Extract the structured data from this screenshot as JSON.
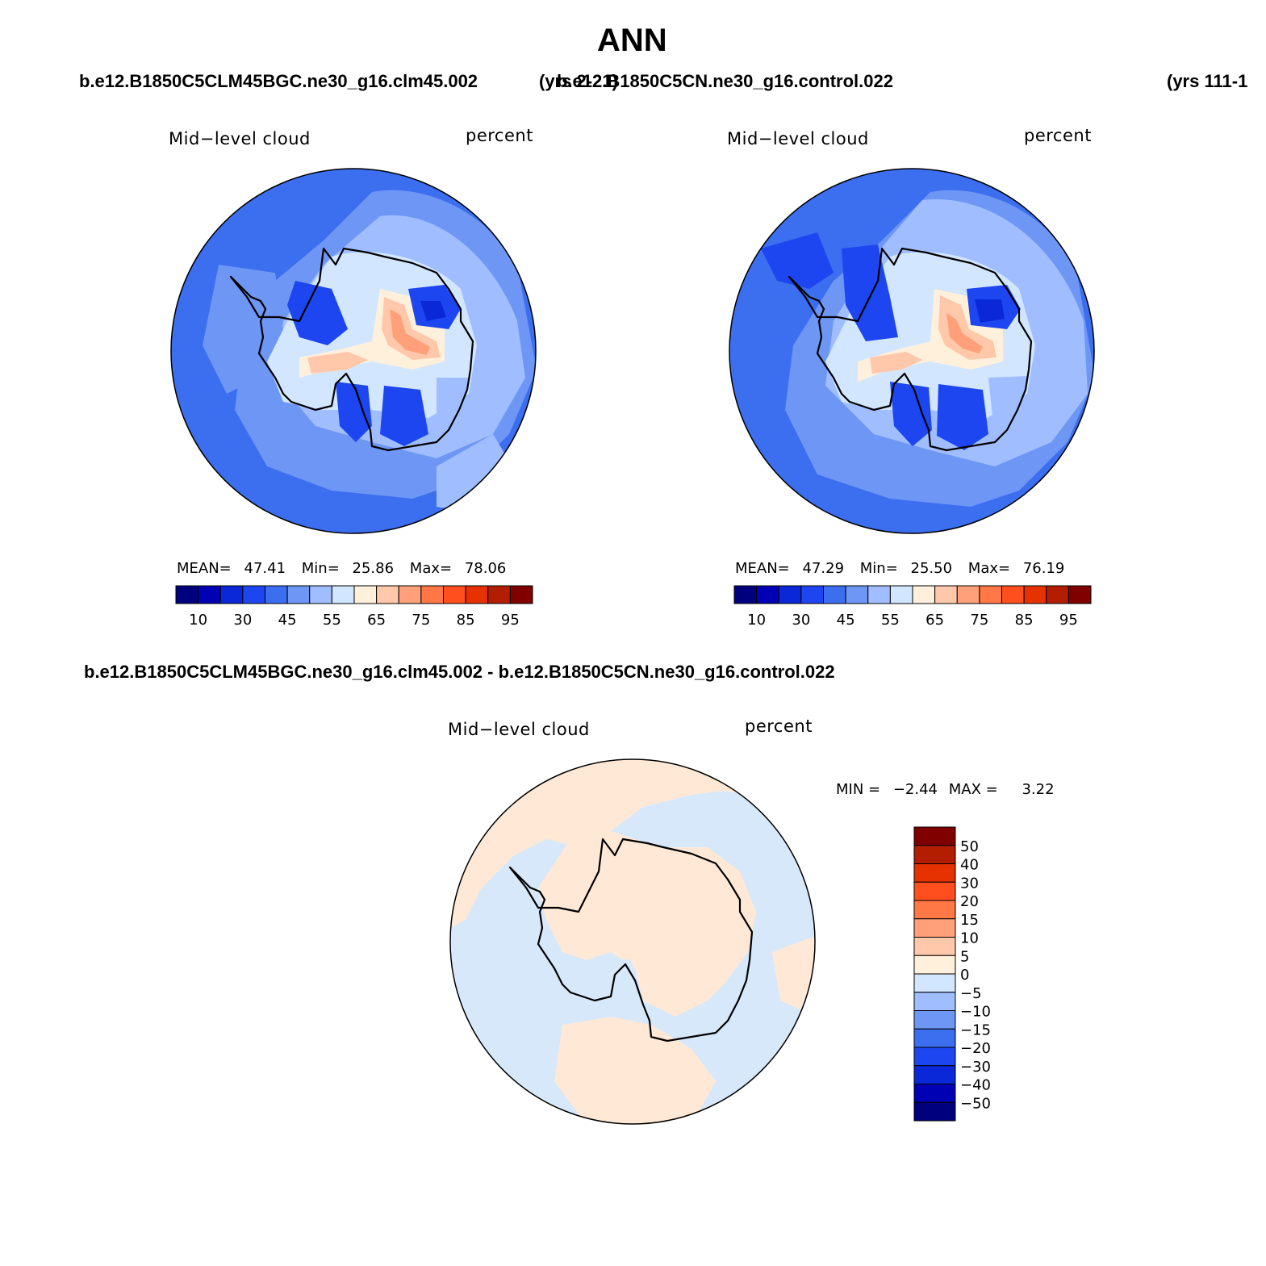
{
  "figure": {
    "title": "ANN",
    "case_left": "b.e12.B1850C5CLM45BGC.ne30_g16.clm45.002",
    "years_left": "(yrs 2-21)",
    "case_right": "b.e12.B1850C5CN.ne30_g16.control.022",
    "years_right": "(yrs 111-1",
    "diff_title": "b.e12.B1850C5CLM45BGC.ne30_g16.clm45.002 - b.e12.B1850C5CN.ne30_g16.control.022"
  },
  "panels": [
    {
      "variable": "Mid−level cloud",
      "units": "percent",
      "stats": {
        "mean_label": "MEAN=",
        "mean": "47.41",
        "min_label": "Min=",
        "min": "25.86",
        "max_label": "Max=",
        "max": "78.06"
      }
    },
    {
      "variable": "Mid−level cloud",
      "units": "percent",
      "stats": {
        "mean_label": "MEAN=",
        "mean": "47.29",
        "min_label": "Min=",
        "min": "25.50",
        "max_label": "Max=",
        "max": "76.19"
      }
    },
    {
      "variable": "Mid−level cloud",
      "units": "percent",
      "stats": {
        "min_label": "MIN =",
        "min": "−2.44",
        "max_label": "MAX =",
        "max": "3.22"
      }
    }
  ],
  "colorbar_abs": {
    "colors": [
      "#00007f",
      "#0000b4",
      "#0a28d8",
      "#1e46f0",
      "#3c6ef0",
      "#6e96f5",
      "#a0beff",
      "#d2e6ff",
      "#fff0dc",
      "#ffc8aa",
      "#ffa07a",
      "#ff7846",
      "#ff4f1e",
      "#e63200",
      "#b41e00",
      "#800000"
    ],
    "tick_labels": [
      "10",
      "30",
      "45",
      "55",
      "65",
      "75",
      "85",
      "95"
    ]
  },
  "colorbar_diff": {
    "colors": [
      "#800000",
      "#b41e00",
      "#e63200",
      "#ff4f1e",
      "#ff7846",
      "#ffa07a",
      "#ffc8aa",
      "#fff0dc",
      "#d2e6ff",
      "#a0beff",
      "#6e96f5",
      "#3c6ef0",
      "#1e46f0",
      "#0a28d8",
      "#0000b4",
      "#00007f"
    ],
    "tick_labels": [
      "50",
      "40",
      "30",
      "20",
      "15",
      "10",
      "5",
      "0",
      "−5",
      "−10",
      "−15",
      "−20",
      "−30",
      "−40",
      "−50"
    ]
  },
  "map_colors": {
    "ocean_blue": "#3c6ef0",
    "light_blue": "#6e96f5",
    "pale_blue": "#a0beff",
    "very_pale_blue": "#d2e6ff",
    "deep_blue": "#1e46f0",
    "darker_blue": "#0a28d8",
    "cream": "#fff0dc",
    "peach": "#ffc8aa",
    "salmon": "#ffa07a",
    "diff_pos": "#ffe9d6",
    "diff_neg": "#d7e8fb"
  }
}
